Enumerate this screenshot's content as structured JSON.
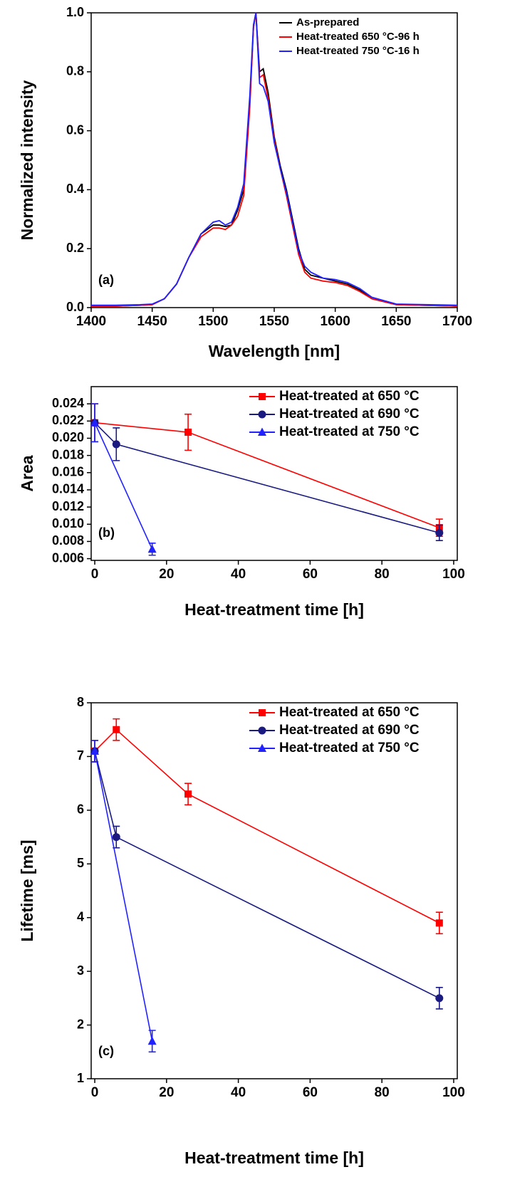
{
  "chart_data": [
    {
      "type": "line",
      "annotation": "(a)",
      "xlabel": "Wavelength [nm]",
      "ylabel": "Normalized intensity",
      "legend": "upper right",
      "x": [
        1400,
        1420,
        1440,
        1450,
        1460,
        1470,
        1480,
        1490,
        1500,
        1505,
        1510,
        1515,
        1520,
        1525,
        1530,
        1533,
        1535,
        1538,
        1541,
        1545,
        1550,
        1555,
        1560,
        1565,
        1570,
        1575,
        1580,
        1590,
        1600,
        1610,
        1620,
        1630,
        1650,
        1700
      ],
      "series": [
        {
          "name": "As-prepared",
          "color": "#000000",
          "values": [
            0.005,
            0.005,
            0.008,
            0.01,
            0.03,
            0.08,
            0.17,
            0.25,
            0.28,
            0.28,
            0.275,
            0.28,
            0.33,
            0.4,
            0.7,
            0.95,
            1.0,
            0.8,
            0.81,
            0.73,
            0.58,
            0.48,
            0.4,
            0.3,
            0.2,
            0.13,
            0.11,
            0.1,
            0.09,
            0.08,
            0.06,
            0.03,
            0.01,
            0.005
          ]
        },
        {
          "name": "Heat-treated 650 °C-96 h",
          "color": "#ff0000",
          "values": [
            0.005,
            0.005,
            0.008,
            0.01,
            0.03,
            0.08,
            0.17,
            0.24,
            0.27,
            0.27,
            0.265,
            0.28,
            0.31,
            0.38,
            0.68,
            0.95,
            1.0,
            0.78,
            0.79,
            0.71,
            0.57,
            0.47,
            0.38,
            0.28,
            0.18,
            0.12,
            0.1,
            0.09,
            0.085,
            0.075,
            0.055,
            0.03,
            0.01,
            0.005
          ]
        },
        {
          "name": "Heat-treated 750 °C-16 h",
          "color": "#2222ff",
          "values": [
            0.008,
            0.008,
            0.01,
            0.012,
            0.03,
            0.08,
            0.17,
            0.25,
            0.29,
            0.295,
            0.28,
            0.29,
            0.34,
            0.42,
            0.72,
            0.96,
            1.0,
            0.76,
            0.75,
            0.7,
            0.56,
            0.47,
            0.39,
            0.29,
            0.19,
            0.14,
            0.12,
            0.1,
            0.095,
            0.085,
            0.065,
            0.035,
            0.012,
            0.008
          ]
        }
      ],
      "xlim": [
        1400,
        1700
      ],
      "xticks": [
        1400,
        1450,
        1500,
        1550,
        1600,
        1650,
        1700
      ],
      "ylim": [
        0,
        1
      ],
      "yticks": [
        {
          "value": 0,
          "label": "0.0"
        },
        0.2,
        0.4,
        0.6,
        0.8,
        {
          "value": 1,
          "label": "1.0"
        }
      ]
    },
    {
      "type": "line",
      "annotation": "(b)",
      "xlabel": "Heat-treatment time [h]",
      "ylabel": "Area",
      "legend": "upper right",
      "series": [
        {
          "name": "Heat-treated at 650 °C",
          "color": "#ff0000",
          "marker": "square",
          "x": [
            0,
            26,
            96
          ],
          "values": [
            0.0218,
            0.0207,
            0.0096
          ],
          "errors": [
            0.0022,
            0.0021,
            0.001
          ]
        },
        {
          "name": "Heat-treated at 690 °C",
          "color": "#1a1a80",
          "marker": "circle",
          "x": [
            0,
            6,
            96
          ],
          "values": [
            0.0218,
            0.0193,
            0.009
          ],
          "errors": [
            0.0022,
            0.0019,
            0.0009
          ]
        },
        {
          "name": "Heat-treated at 750 °C",
          "color": "#2222ff",
          "marker": "triangle",
          "x": [
            0,
            16
          ],
          "values": [
            0.0218,
            0.0071
          ],
          "errors": [
            0.0022,
            0.0007
          ]
        }
      ],
      "xlim": [
        -1,
        101
      ],
      "xticks": [
        0,
        20,
        40,
        60,
        80,
        100
      ],
      "ylim": [
        0.0058,
        0.026
      ],
      "yticks": [
        0.006,
        0.008,
        {
          "value": 0.01,
          "label": "0.010"
        },
        0.012,
        0.014,
        0.016,
        0.018,
        {
          "value": 0.02,
          "label": "0.020"
        },
        0.022,
        0.024
      ]
    },
    {
      "type": "line",
      "annotation": "(c)",
      "xlabel": "Heat-treatment time [h]",
      "ylabel": "Lifetime [ms]",
      "legend": "upper right",
      "series": [
        {
          "name": "Heat-treated at 650 °C",
          "color": "#ff0000",
          "marker": "square",
          "x": [
            0,
            6,
            26,
            96
          ],
          "values": [
            7.1,
            7.5,
            6.3,
            3.9
          ],
          "errors": [
            0.2,
            0.2,
            0.2,
            0.2
          ]
        },
        {
          "name": "Heat-treated at 690 °C",
          "color": "#1a1a80",
          "marker": "circle",
          "x": [
            0,
            6,
            96
          ],
          "values": [
            7.1,
            5.5,
            2.5
          ],
          "errors": [
            0.2,
            0.2,
            0.2
          ]
        },
        {
          "name": "Heat-treated at 750 °C",
          "color": "#2222ff",
          "marker": "triangle",
          "x": [
            0,
            16
          ],
          "values": [
            7.1,
            1.7
          ],
          "errors": [
            0.2,
            0.2
          ]
        }
      ],
      "xlim": [
        -1,
        101
      ],
      "xticks": [
        0,
        20,
        40,
        60,
        80,
        100
      ],
      "ylim": [
        1,
        8
      ],
      "yticks": [
        1,
        2,
        3,
        4,
        5,
        6,
        7,
        8
      ]
    }
  ]
}
